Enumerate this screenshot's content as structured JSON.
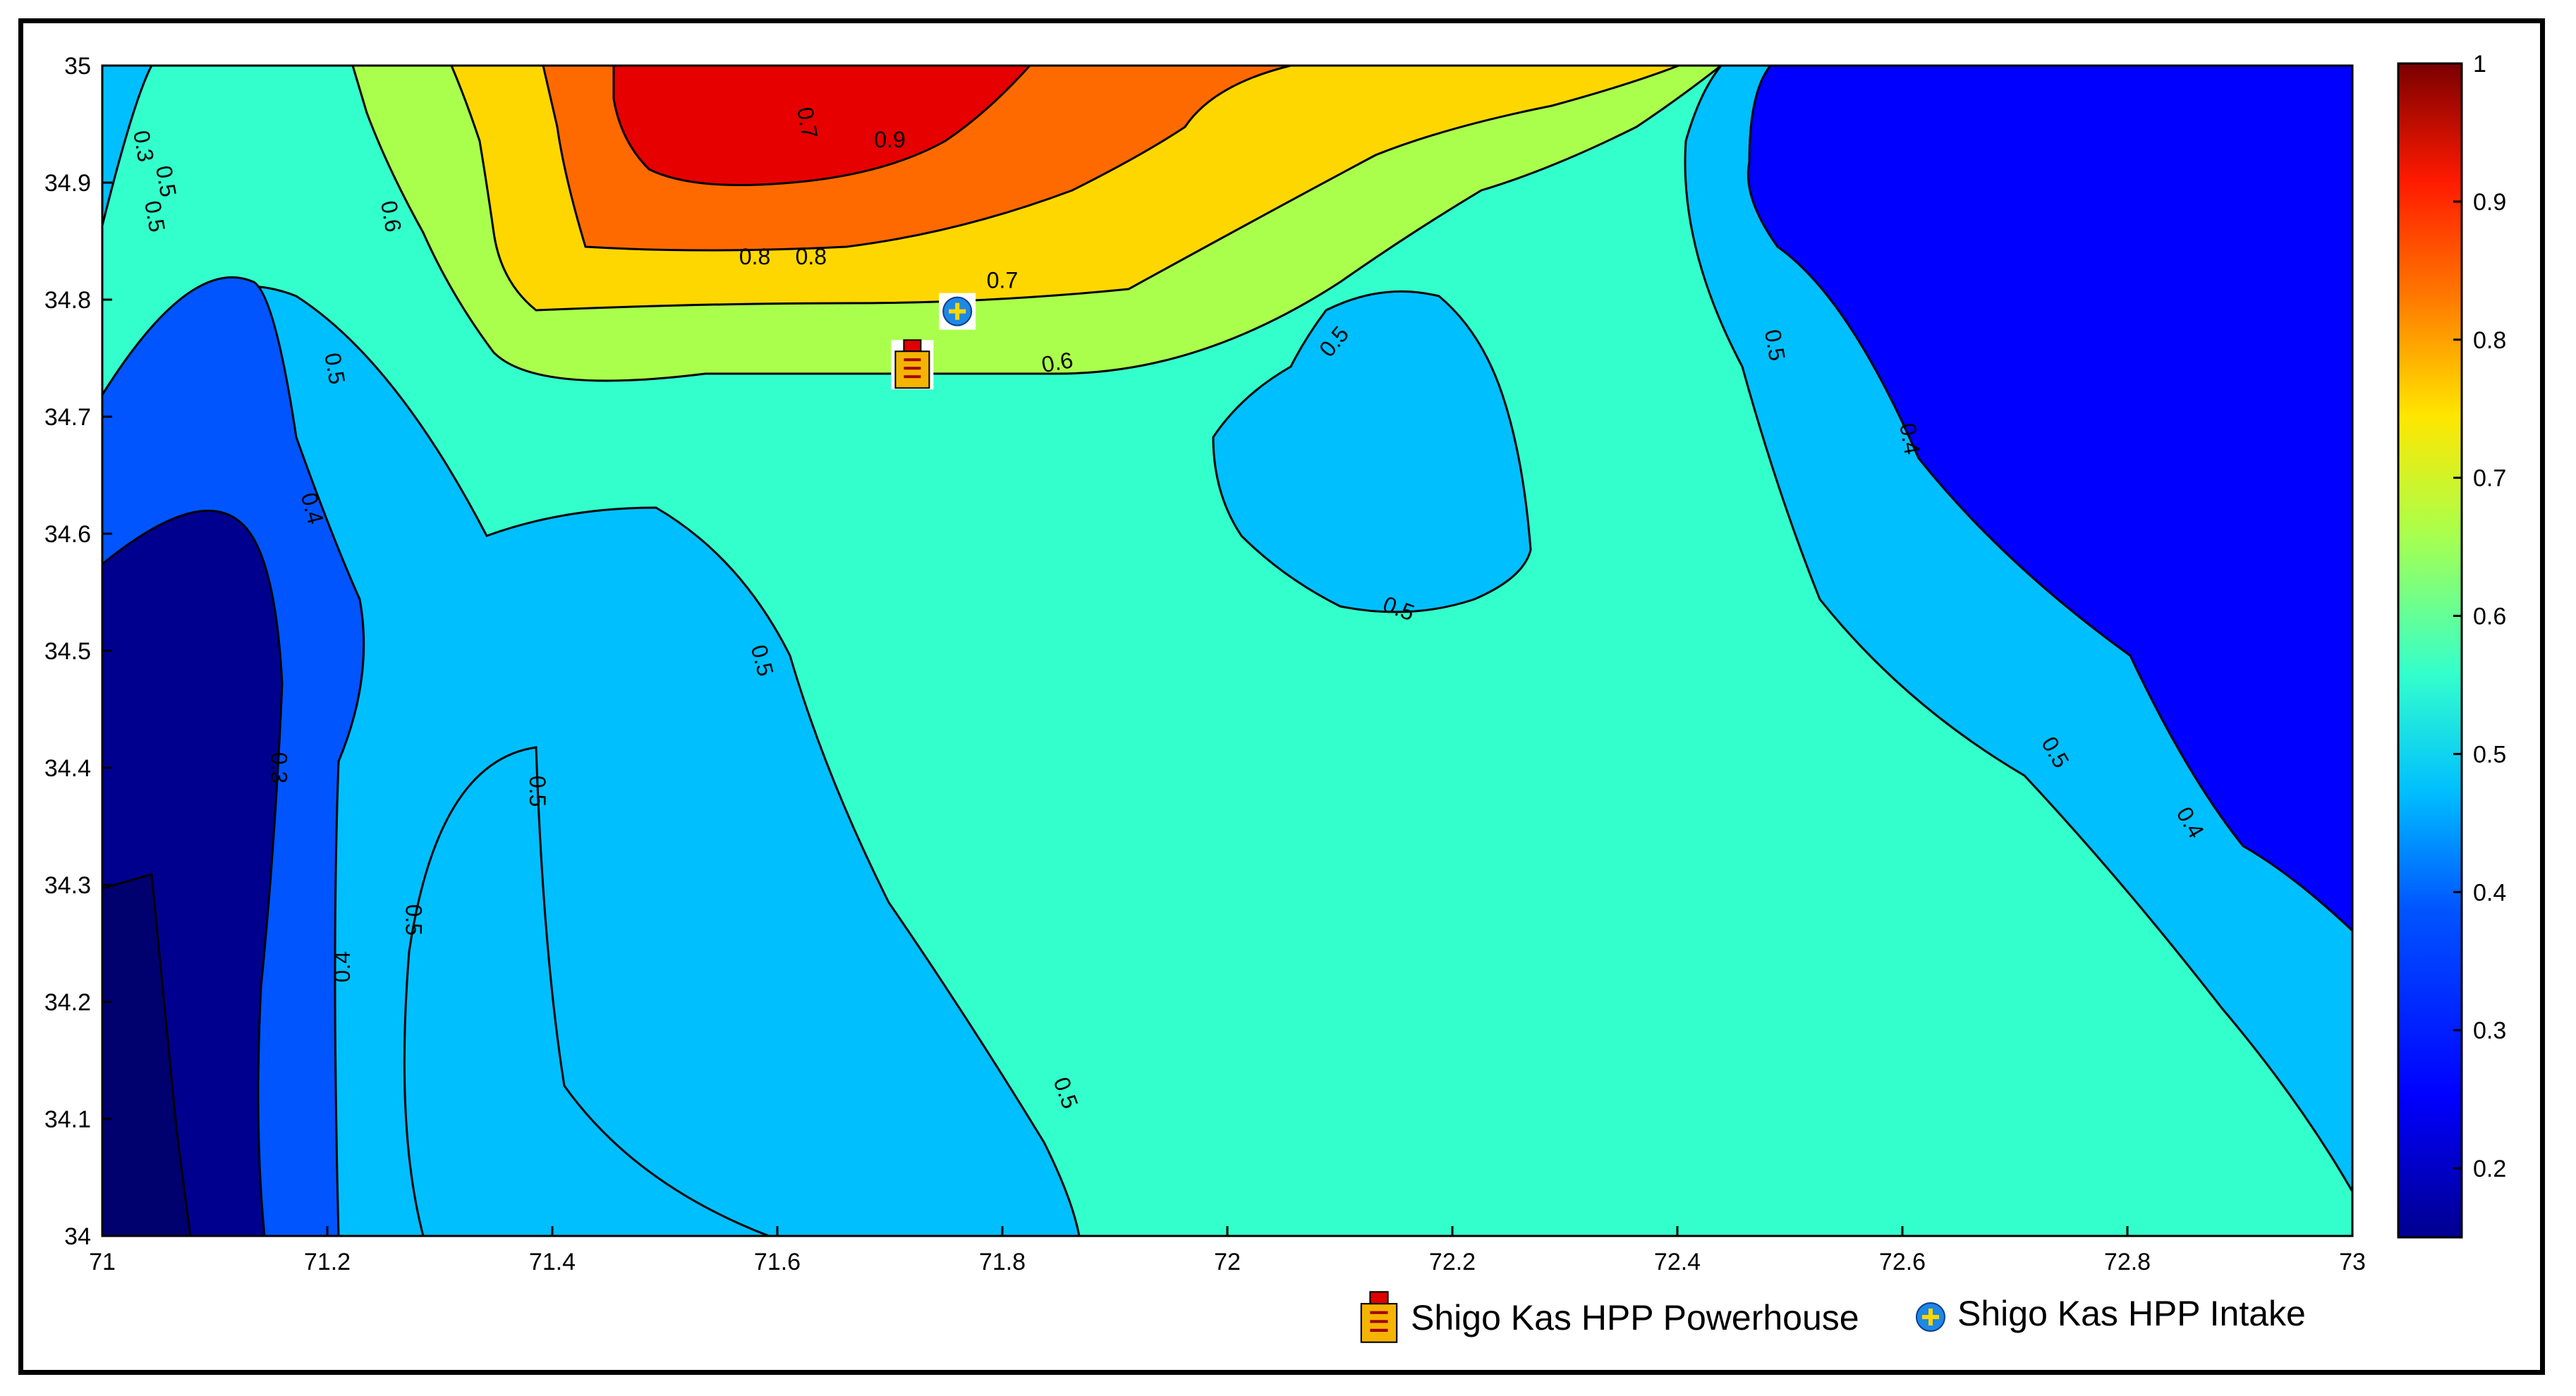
{
  "chart_data": {
    "type": "contour",
    "xlim": [
      71,
      73
    ],
    "ylim": [
      34,
      35
    ],
    "x_ticks": [
      "71",
      "71.2",
      "71.4",
      "71.6",
      "71.8",
      "72",
      "72.2",
      "72.4",
      "72.6",
      "72.8",
      "73"
    ],
    "y_ticks": [
      "35",
      "34.9",
      "34.8",
      "34.7",
      "34.6",
      "34.5",
      "34.4",
      "34.3",
      "34.2",
      "34.1",
      "34"
    ],
    "colorbar": {
      "min": 0.15,
      "max": 1,
      "ticks": [
        "1",
        "0.9",
        "0.8",
        "0.7",
        "0.6",
        "0.5",
        "0.4",
        "0.3",
        "0.2"
      ],
      "colormap": "jet"
    },
    "contour_levels": [
      0.2,
      0.3,
      0.4,
      0.5,
      0.6,
      0.7,
      0.8,
      0.9
    ],
    "level_colors": {
      "lt_0.2": "#00008f",
      "0.2_0.3": "#0000ff",
      "0.3_0.4": "#0055ff",
      "0.4_0.5": "#00bfff",
      "0.5_0.6": "#33ffcc",
      "0.6_0.7": "#aaff4c",
      "0.7_0.8": "#ffd700",
      "0.8_0.9": "#ff6a00",
      "gt_0.9": "#e60000"
    },
    "contour_labels": [
      "0.3",
      "0.5",
      "0.5",
      "0.7",
      "0.8",
      "0.9",
      "0.6",
      "0.8",
      "0.7",
      "0.6",
      "0.5",
      "0.4",
      "0.5",
      "0.5",
      "0.5",
      "0.5",
      "0.3",
      "0.4",
      "0.5",
      "0.5",
      "0.5",
      "0.4",
      "0.5",
      "0.4"
    ],
    "markers": [
      {
        "name": "Shigo Kas HPP Powerhouse",
        "x": 71.72,
        "y": 34.745,
        "icon": "powerhouse-icon"
      },
      {
        "name": "Shigo Kas HPP Intake",
        "x": 71.76,
        "y": 34.79,
        "icon": "intake-icon"
      }
    ],
    "legend": [
      "Shigo Kas HPP Powerhouse",
      "Shigo Kas HPP Intake"
    ],
    "legend_placement": "bottom-right"
  }
}
